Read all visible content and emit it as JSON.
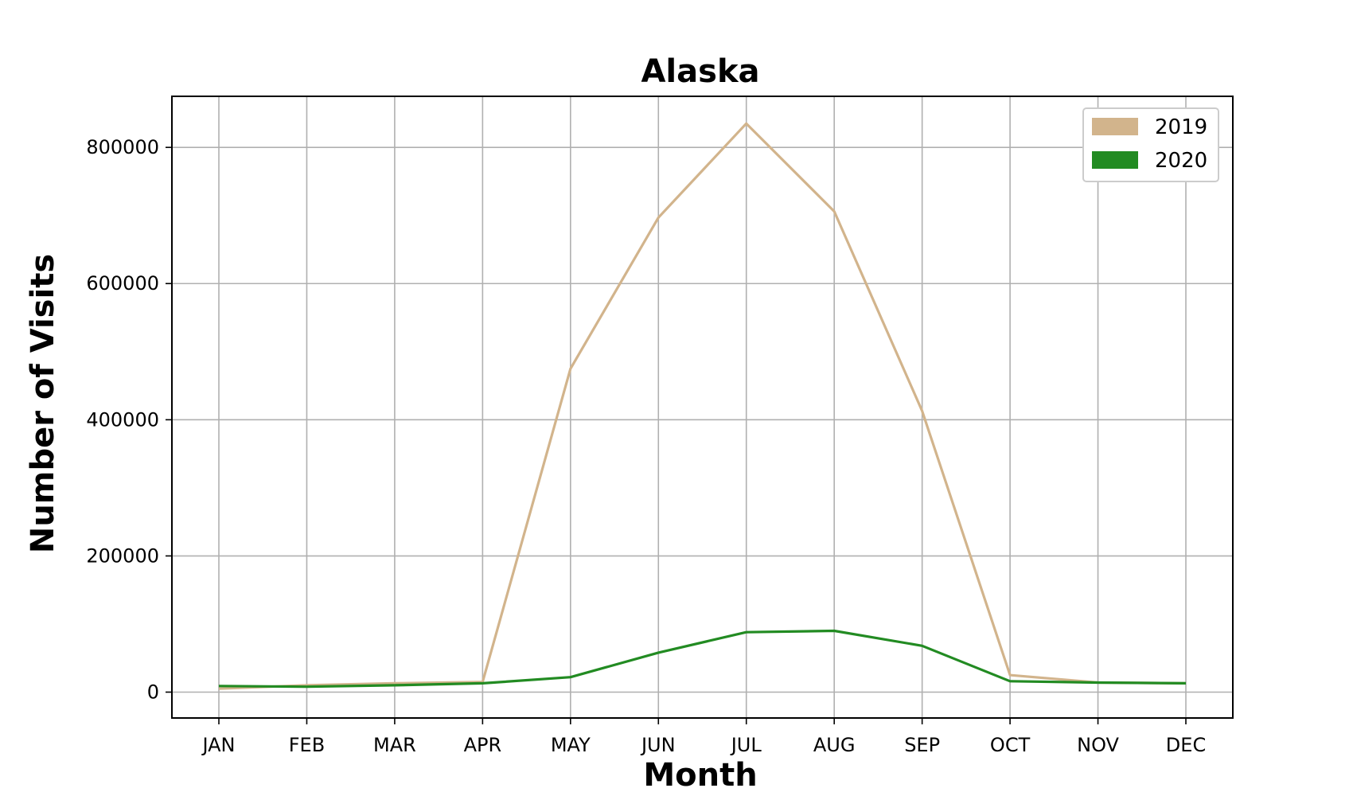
{
  "chart_data": {
    "type": "line",
    "title": "Alaska",
    "xlabel": "Month",
    "ylabel": "Number of Visits",
    "categories": [
      "JAN",
      "FEB",
      "MAR",
      "APR",
      "MAY",
      "JUN",
      "JUL",
      "AUG",
      "SEP",
      "OCT",
      "NOV",
      "DEC"
    ],
    "series": [
      {
        "name": "2019",
        "color": "#d2b48c",
        "values": [
          5000,
          10000,
          13000,
          15000,
          475000,
          697000,
          835000,
          706000,
          413000,
          25000,
          14000,
          13000
        ]
      },
      {
        "name": "2020",
        "color": "#228b22",
        "values": [
          9000,
          8000,
          10000,
          13000,
          22000,
          58000,
          88000,
          90000,
          68000,
          16000,
          14000,
          13000
        ]
      }
    ],
    "yticks": [
      0,
      200000,
      400000,
      600000,
      800000
    ],
    "ytick_labels": [
      "0",
      "200000",
      "400000",
      "600000",
      "800000"
    ],
    "ylim": [
      -38000,
      875000
    ],
    "grid": true,
    "legend_position": "top-right"
  }
}
